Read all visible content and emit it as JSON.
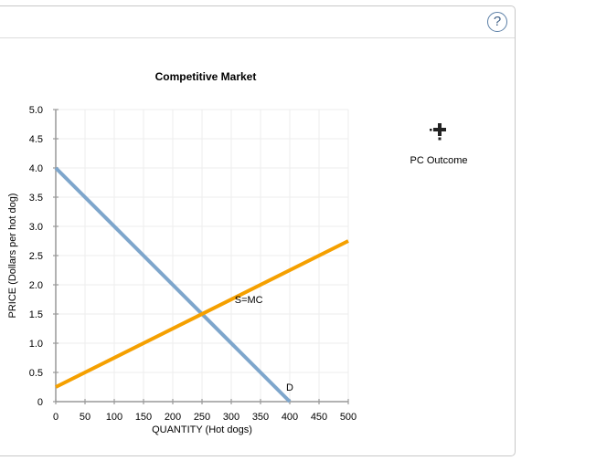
{
  "header": {
    "help_icon": "?"
  },
  "palette": {
    "demand": "#7ea6cc",
    "supply": "#f5a000",
    "grid": "#eeeeee",
    "axis": "#999999",
    "border": "#c8c8c8",
    "help": "#3e5f86"
  },
  "tool": {
    "label": "PC Outcome",
    "icon": "plus-point-icon"
  },
  "chart_data": {
    "type": "line",
    "title": "Competitive Market",
    "xlabel": "QUANTITY (Hot dogs)",
    "ylabel": "PRICE (Dollars per hot dog)",
    "xlim": [
      0,
      500
    ],
    "ylim": [
      0,
      5.0
    ],
    "x_ticks": [
      "0",
      "50",
      "100",
      "150",
      "200",
      "250",
      "300",
      "350",
      "400",
      "450",
      "500"
    ],
    "y_ticks": [
      "0",
      "0.5",
      "1.0",
      "1.5",
      "2.0",
      "2.5",
      "3.0",
      "3.5",
      "4.0",
      "4.5",
      "5.0"
    ],
    "grid": true,
    "series": [
      {
        "name": "D",
        "label": "D",
        "color": "#7ea6cc",
        "points": [
          [
            0,
            4.0
          ],
          [
            400,
            0
          ]
        ]
      },
      {
        "name": "S=MC",
        "label": "S=MC",
        "color": "#f5a000",
        "points": [
          [
            0,
            0.25
          ],
          [
            500,
            2.75
          ]
        ]
      }
    ],
    "annotations": [
      {
        "text": "S=MC",
        "x": 330,
        "y": 1.75
      },
      {
        "text": "D",
        "x": 400,
        "y": 0.25
      }
    ],
    "equilibrium": {
      "x": 250,
      "y": 1.5
    }
  }
}
